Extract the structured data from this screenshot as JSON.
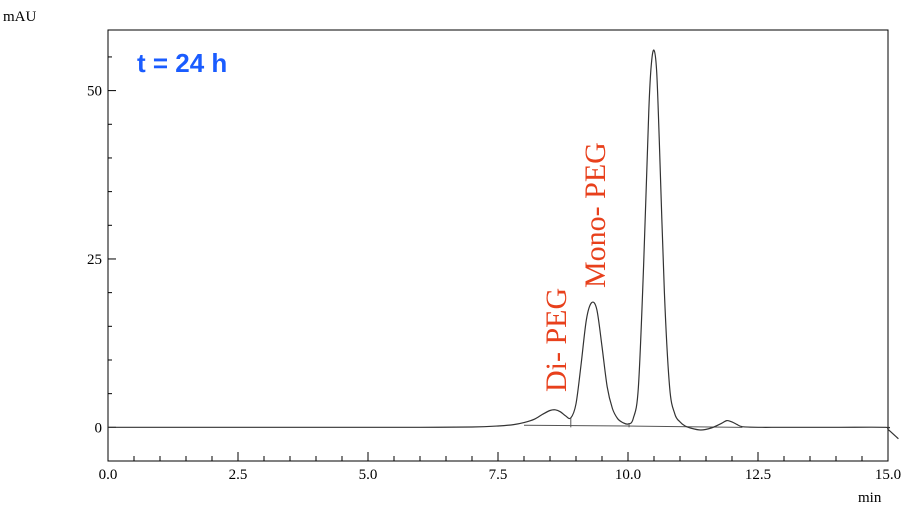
{
  "chart_data": {
    "type": "line",
    "yunit": "mAU",
    "xunit": "min",
    "xlim": [
      0,
      15
    ],
    "ylim": [
      -5,
      59
    ],
    "xticks": [
      "0.0",
      "2.5",
      "5.0",
      "7.5",
      "10.0",
      "12.5",
      "15.0"
    ],
    "xtick_values": [
      0,
      2.5,
      5,
      7.5,
      10,
      12.5,
      15
    ],
    "yticks": [
      "0",
      "25",
      "50"
    ],
    "ytick_values": [
      0,
      25,
      50
    ],
    "grid": false,
    "annotations": {
      "time": "t = 24 h",
      "peak_di": "Di- PEG",
      "peak_mono": "Mono- PEG"
    },
    "colors": {
      "time": "#1a5cff",
      "peaks": "#e8401c",
      "trace": "#333333"
    },
    "series": [
      {
        "x": [
          0,
          1,
          2,
          3,
          4,
          5,
          6,
          7,
          7.5,
          7.8,
          8.0,
          8.2,
          8.35,
          8.5,
          8.6,
          8.7,
          8.8,
          8.9,
          9.0,
          9.1,
          9.2,
          9.3,
          9.4,
          9.5,
          9.6,
          9.7,
          9.8,
          9.9,
          10.0,
          10.1,
          10.2,
          10.3,
          10.4,
          10.45,
          10.5,
          10.55,
          10.6,
          10.7,
          10.8,
          10.9,
          11.0,
          11.1,
          11.2,
          11.4,
          11.6,
          11.8,
          11.9,
          12.0,
          12.1,
          12.2,
          12.5,
          13,
          14,
          14.95,
          15.0,
          15.2
        ],
        "y": [
          0,
          0,
          0,
          0,
          0,
          0,
          0,
          0.05,
          0.2,
          0.4,
          0.7,
          1.2,
          1.9,
          2.5,
          2.6,
          2.3,
          1.7,
          1.4,
          3.5,
          9.5,
          16.0,
          18.5,
          17.5,
          12.0,
          6.0,
          2.8,
          1.3,
          0.7,
          0.5,
          1.3,
          6.0,
          24.0,
          47.0,
          54.0,
          56.0,
          53.0,
          43.0,
          20.0,
          6.0,
          2.0,
          0.8,
          0.2,
          -0.1,
          -0.4,
          -0.1,
          0.6,
          1.0,
          0.8,
          0.4,
          0.1,
          0,
          0,
          0,
          0,
          -0.3,
          -1.7
        ]
      }
    ]
  }
}
